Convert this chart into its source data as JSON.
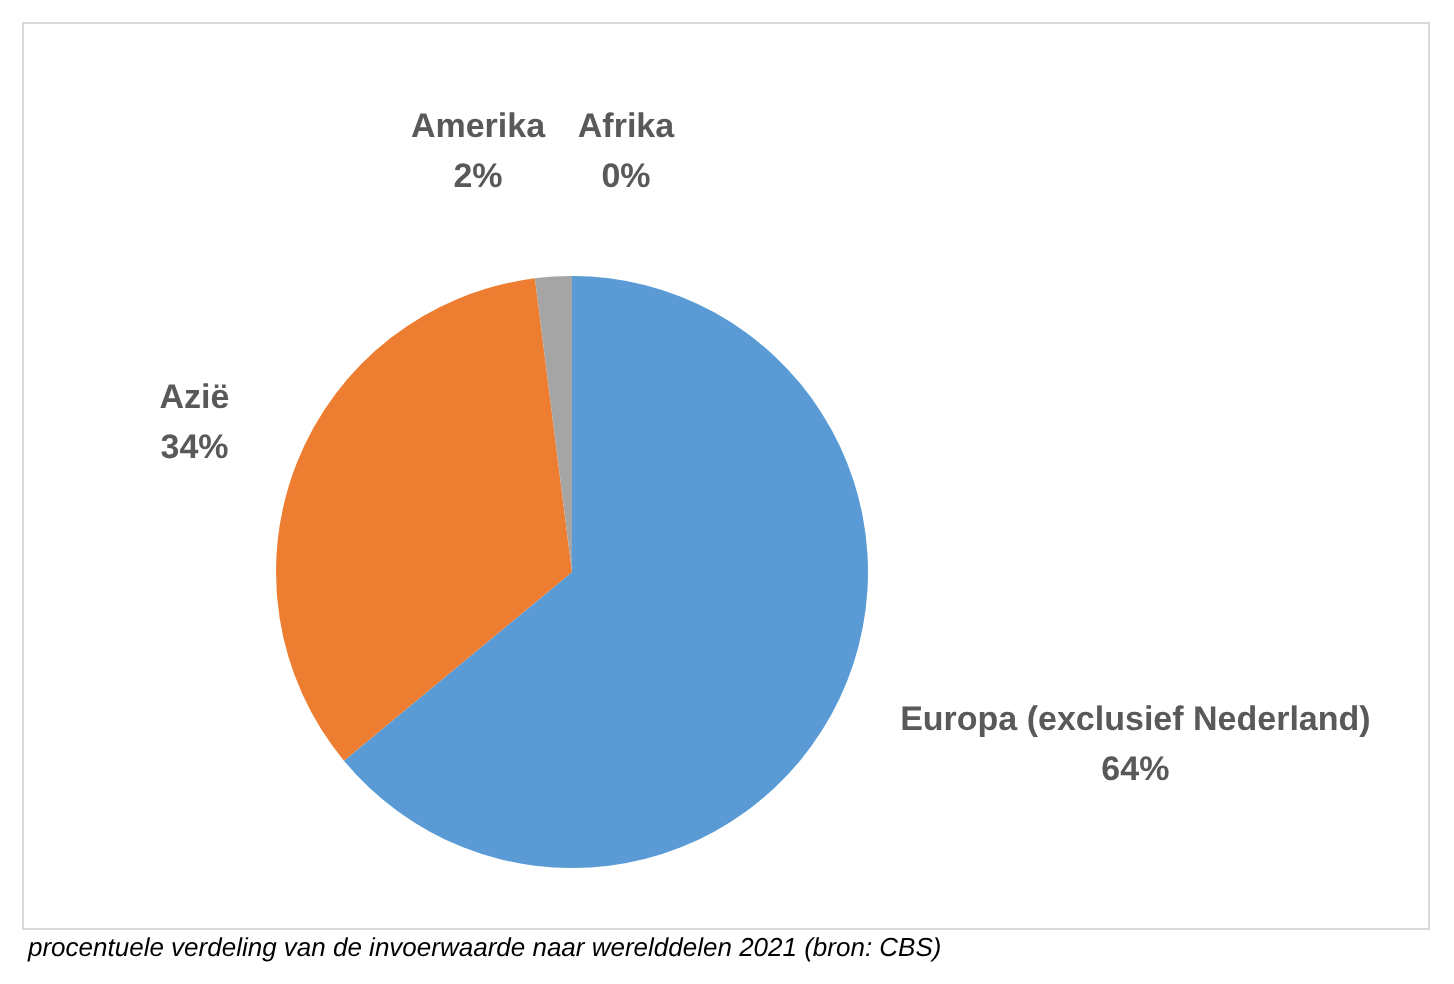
{
  "chart_data": {
    "type": "pie",
    "categories": [
      "Europa (exclusief Nederland)",
      "Azië",
      "Amerika",
      "Afrika"
    ],
    "values": [
      64,
      34,
      2,
      0
    ],
    "value_labels": [
      "64%",
      "34%",
      "2%",
      "0%"
    ],
    "colors": [
      "#5b9bd5",
      "#ed7d31",
      "#a5a5a5",
      "#ffc000"
    ],
    "legend": false,
    "annotations": [
      "procentuele verdeling van de invoerwaarde naar werelddelen 2021 (bron: CBS)"
    ]
  }
}
